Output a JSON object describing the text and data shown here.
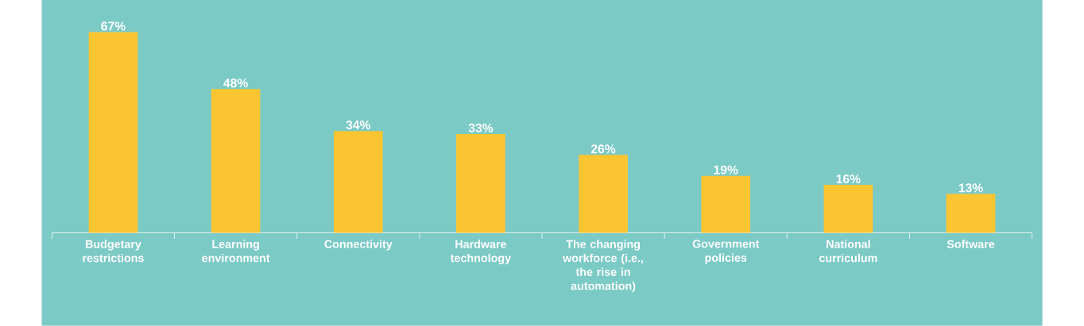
{
  "chart_data": {
    "type": "bar",
    "categories": [
      "Budgetary restrictions",
      "Learning environment",
      "Connectivity",
      "Hardware technology",
      "The changing workforce (i.e., the rise in automation)",
      "Government policies",
      "National curriculum",
      "Software"
    ],
    "values": [
      67,
      48,
      34,
      33,
      26,
      19,
      16,
      13
    ],
    "value_labels": [
      "67%",
      "48%",
      "34%",
      "33%",
      "26%",
      "19%",
      "16%",
      "13%"
    ],
    "color": "#fbc531"
  }
}
